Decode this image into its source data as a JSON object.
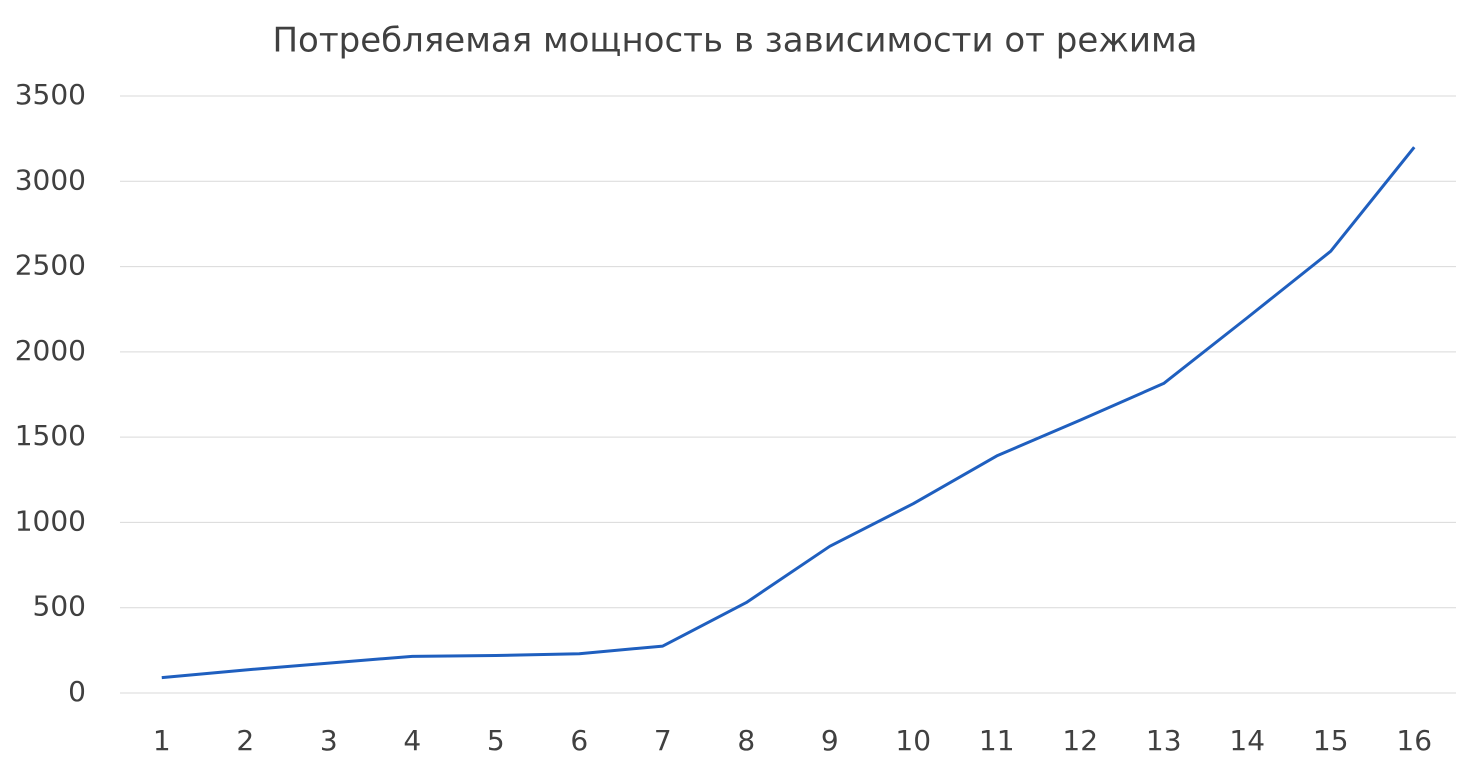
{
  "chart_data": {
    "type": "line",
    "title": "Потребляемая мощность в зависимости от режима",
    "categories": [
      "1",
      "2",
      "3",
      "4",
      "5",
      "6",
      "7",
      "8",
      "9",
      "10",
      "11",
      "12",
      "13",
      "14",
      "15",
      "16"
    ],
    "values": [
      90,
      135,
      175,
      215,
      220,
      230,
      275,
      530,
      860,
      1110,
      1390,
      1600,
      1815,
      2200,
      2590,
      3200
    ],
    "color": "#1f5fbf",
    "ylim": [
      0,
      3500
    ],
    "yticks": [
      0,
      500,
      1000,
      1500,
      2000,
      2500,
      3000,
      3500
    ],
    "grid": true
  }
}
